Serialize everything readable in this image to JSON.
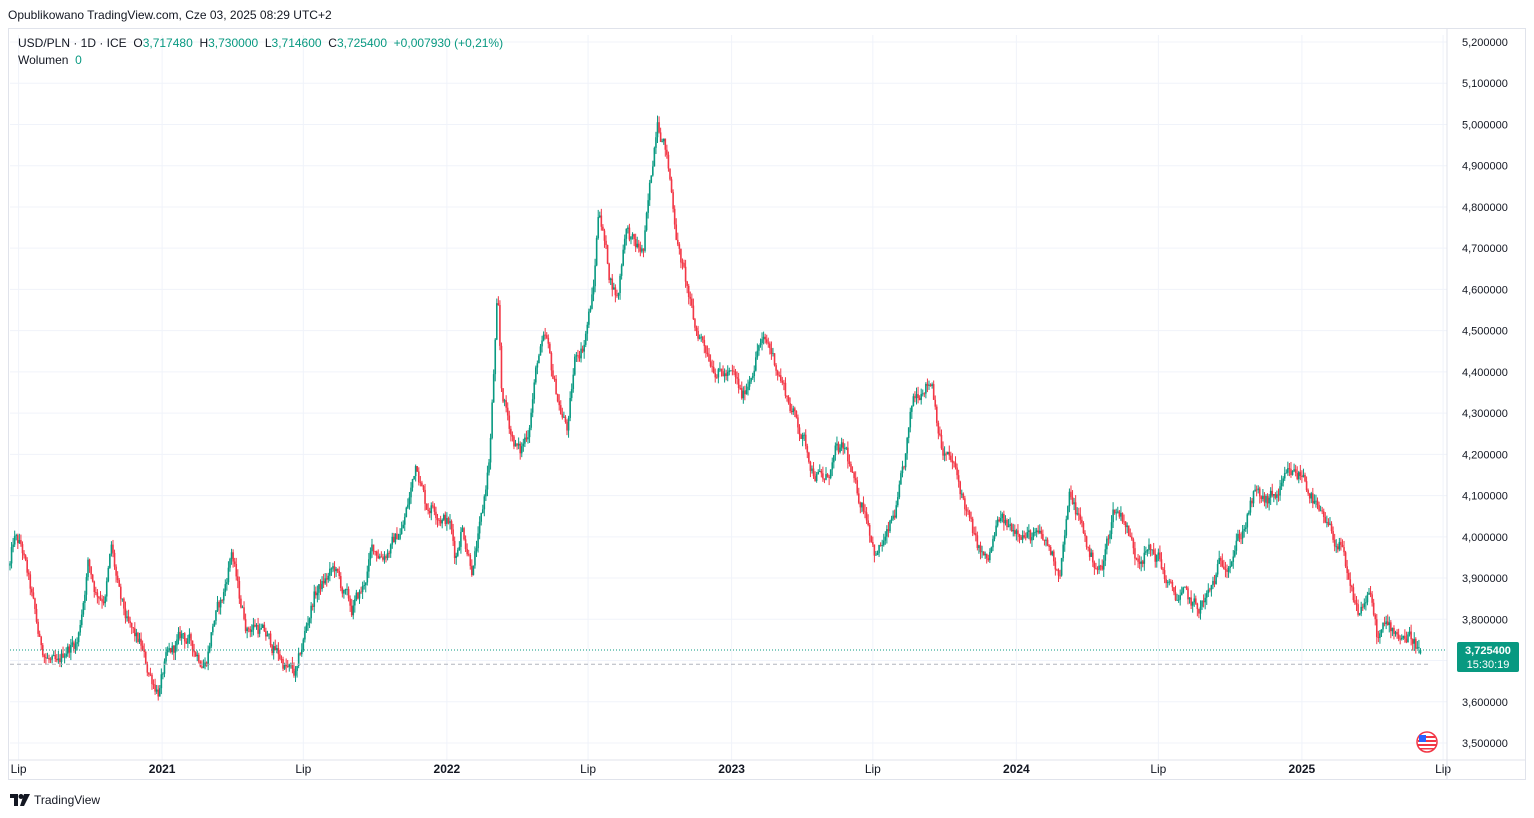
{
  "header": {
    "published": "Opublikowano TradingView.com, Cze 03, 2025 08:29 UTC+2"
  },
  "legend": {
    "symbol": "USD/PLN · 1D · ICE",
    "o_label": "O",
    "o_value": "3,717480",
    "h_label": "H",
    "h_value": "3,730000",
    "l_label": "L",
    "l_value": "3,714600",
    "c_label": "C",
    "c_value": "3,725400",
    "change": "+0,007930 (+0,21%)",
    "volume_label": "Wolumen",
    "volume_value": "0"
  },
  "price_badge": {
    "price": "3,725400",
    "countdown": "15:30:19"
  },
  "footer": {
    "brand": "TradingView"
  },
  "colors": {
    "up": "#089981",
    "down": "#f23645",
    "grid": "#f0f3fa",
    "axis_text": "#131722",
    "badge": "#089981"
  },
  "chart_data": {
    "type": "candlestick",
    "title": "",
    "ylim": [
      3.5,
      5.2
    ],
    "y_ticks": [
      "5,200000",
      "5,100000",
      "5,000000",
      "4,900000",
      "4,800000",
      "4,700000",
      "4,600000",
      "4,500000",
      "4,400000",
      "4,300000",
      "4,200000",
      "4,100000",
      "4,000000",
      "3,900000",
      "3,800000",
      "3,700000",
      "3,600000",
      "3,500000"
    ],
    "y_tick_values": [
      5.2,
      5.1,
      5.0,
      4.9,
      4.8,
      4.7,
      4.6,
      4.5,
      4.4,
      4.3,
      4.2,
      4.1,
      4.0,
      3.9,
      3.8,
      3.7,
      3.6,
      3.5
    ],
    "x_range": [
      "2020-06-20",
      "2025-07-06"
    ],
    "x_ticks": [
      {
        "label": "Lip",
        "date": "2020-07-01"
      },
      {
        "label": "2021",
        "date": "2021-01-01"
      },
      {
        "label": "Lip",
        "date": "2021-07-01"
      },
      {
        "label": "2022",
        "date": "2022-01-01"
      },
      {
        "label": "Lip",
        "date": "2022-07-01"
      },
      {
        "label": "2023",
        "date": "2023-01-01"
      },
      {
        "label": "Lip",
        "date": "2023-07-01"
      },
      {
        "label": "2024",
        "date": "2024-01-01"
      },
      {
        "label": "Lip",
        "date": "2024-07-01"
      },
      {
        "label": "2025",
        "date": "2025-01-01"
      },
      {
        "label": "Lip",
        "date": "2025-07-01"
      }
    ],
    "series_path": [
      [
        "2020-06-20",
        3.93
      ],
      [
        "2020-06-25",
        3.99
      ],
      [
        "2020-07-05",
        3.97
      ],
      [
        "2020-07-18",
        3.85
      ],
      [
        "2020-07-28",
        3.74
      ],
      [
        "2020-08-10",
        3.7
      ],
      [
        "2020-08-20",
        3.67
      ],
      [
        "2020-08-31",
        3.73
      ],
      [
        "2020-09-15",
        3.75
      ],
      [
        "2020-09-28",
        3.94
      ],
      [
        "2020-10-08",
        3.87
      ],
      [
        "2020-10-20",
        3.86
      ],
      [
        "2020-10-28",
        3.97
      ],
      [
        "2020-11-08",
        3.84
      ],
      [
        "2020-11-20",
        3.77
      ],
      [
        "2020-12-05",
        3.73
      ],
      [
        "2020-12-12",
        3.68
      ],
      [
        "2020-12-28",
        3.63
      ],
      [
        "2021-01-05",
        3.69
      ],
      [
        "2021-01-15",
        3.72
      ],
      [
        "2021-01-28",
        3.76
      ],
      [
        "2021-02-10",
        3.73
      ],
      [
        "2021-02-26",
        3.7
      ],
      [
        "2021-03-08",
        3.8
      ],
      [
        "2021-03-20",
        3.85
      ],
      [
        "2021-03-31",
        3.97
      ],
      [
        "2021-04-10",
        3.85
      ],
      [
        "2021-04-20",
        3.78
      ],
      [
        "2021-05-01",
        3.79
      ],
      [
        "2021-05-20",
        3.74
      ],
      [
        "2021-06-01",
        3.71
      ],
      [
        "2021-06-10",
        3.68
      ],
      [
        "2021-06-22",
        3.66
      ],
      [
        "2021-07-05",
        3.78
      ],
      [
        "2021-07-15",
        3.86
      ],
      [
        "2021-07-28",
        3.89
      ],
      [
        "2021-08-10",
        3.92
      ],
      [
        "2021-08-20",
        3.87
      ],
      [
        "2021-09-01",
        3.82
      ],
      [
        "2021-09-15",
        3.87
      ],
      [
        "2021-09-28",
        3.97
      ],
      [
        "2021-10-10",
        3.96
      ],
      [
        "2021-10-22",
        3.98
      ],
      [
        "2021-11-05",
        4.02
      ],
      [
        "2021-11-15",
        4.1
      ],
      [
        "2021-11-23",
        4.19
      ],
      [
        "2021-12-05",
        4.08
      ],
      [
        "2021-12-15",
        4.08
      ],
      [
        "2021-12-28",
        4.05
      ],
      [
        "2022-01-05",
        4.03
      ],
      [
        "2022-01-12",
        3.95
      ],
      [
        "2022-01-20",
        4.03
      ],
      [
        "2022-02-03",
        3.93
      ],
      [
        "2022-02-15",
        4.04
      ],
      [
        "2022-02-25",
        4.2
      ],
      [
        "2022-03-07",
        4.58
      ],
      [
        "2022-03-12",
        4.35
      ],
      [
        "2022-03-25",
        4.25
      ],
      [
        "2022-04-05",
        4.2
      ],
      [
        "2022-04-15",
        4.26
      ],
      [
        "2022-04-28",
        4.44
      ],
      [
        "2022-05-08",
        4.47
      ],
      [
        "2022-05-15",
        4.4
      ],
      [
        "2022-05-28",
        4.3
      ],
      [
        "2022-06-05",
        4.26
      ],
      [
        "2022-06-15",
        4.44
      ],
      [
        "2022-06-25",
        4.47
      ],
      [
        "2022-07-08",
        4.6
      ],
      [
        "2022-07-15",
        4.81
      ],
      [
        "2022-07-28",
        4.64
      ],
      [
        "2022-08-08",
        4.58
      ],
      [
        "2022-08-18",
        4.76
      ],
      [
        "2022-08-30",
        4.7
      ],
      [
        "2022-09-10",
        4.69
      ],
      [
        "2022-09-20",
        4.87
      ],
      [
        "2022-09-28",
        5.03
      ],
      [
        "2022-10-08",
        4.95
      ],
      [
        "2022-10-15",
        4.85
      ],
      [
        "2022-10-25",
        4.7
      ],
      [
        "2022-11-05",
        4.6
      ],
      [
        "2022-11-15",
        4.5
      ],
      [
        "2022-11-25",
        4.48
      ],
      [
        "2022-12-05",
        4.44
      ],
      [
        "2022-12-18",
        4.4
      ],
      [
        "2023-01-05",
        4.38
      ],
      [
        "2023-01-15",
        4.33
      ],
      [
        "2023-02-05",
        4.47
      ],
      [
        "2023-02-18",
        4.46
      ],
      [
        "2023-03-03",
        4.4
      ],
      [
        "2023-03-15",
        4.33
      ],
      [
        "2023-04-01",
        4.25
      ],
      [
        "2023-04-15",
        4.17
      ],
      [
        "2023-05-01",
        4.13
      ],
      [
        "2023-05-15",
        4.2
      ],
      [
        "2023-05-28",
        4.2
      ],
      [
        "2023-06-10",
        4.1
      ],
      [
        "2023-06-22",
        4.07
      ],
      [
        "2023-07-05",
        3.96
      ],
      [
        "2023-07-20",
        4.0
      ],
      [
        "2023-08-01",
        4.07
      ],
      [
        "2023-08-10",
        4.16
      ],
      [
        "2023-08-22",
        4.33
      ],
      [
        "2023-09-05",
        4.38
      ],
      [
        "2023-09-15",
        4.38
      ],
      [
        "2023-09-28",
        4.21
      ],
      [
        "2023-10-12",
        4.17
      ],
      [
        "2023-10-28",
        4.07
      ],
      [
        "2023-11-10",
        3.98
      ],
      [
        "2023-11-25",
        3.93
      ],
      [
        "2023-12-10",
        4.04
      ],
      [
        "2023-12-20",
        4.02
      ],
      [
        "2024-01-05",
        4.03
      ],
      [
        "2024-01-18",
        4.0
      ],
      [
        "2024-02-01",
        3.99
      ],
      [
        "2024-02-12",
        3.97
      ],
      [
        "2024-02-25",
        3.92
      ],
      [
        "2024-03-10",
        4.1
      ],
      [
        "2024-03-22",
        4.04
      ],
      [
        "2024-04-05",
        3.95
      ],
      [
        "2024-04-20",
        3.92
      ],
      [
        "2024-05-05",
        4.07
      ],
      [
        "2024-05-18",
        4.05
      ],
      [
        "2024-06-01",
        3.96
      ],
      [
        "2024-06-15",
        3.97
      ],
      [
        "2024-07-01",
        3.95
      ],
      [
        "2024-07-18",
        3.86
      ],
      [
        "2024-08-05",
        3.85
      ],
      [
        "2024-08-20",
        3.82
      ],
      [
        "2024-09-05",
        3.86
      ],
      [
        "2024-09-18",
        3.93
      ],
      [
        "2024-10-01",
        3.96
      ],
      [
        "2024-10-18",
        4.02
      ],
      [
        "2024-11-01",
        4.1
      ],
      [
        "2024-11-15",
        4.08
      ],
      [
        "2024-12-01",
        4.1
      ],
      [
        "2024-12-15",
        4.14
      ],
      [
        "2025-01-03",
        4.15
      ],
      [
        "2025-01-14",
        4.1
      ],
      [
        "2025-01-25",
        4.04
      ],
      [
        "2025-02-08",
        4.0
      ],
      [
        "2025-02-20",
        3.98
      ],
      [
        "2025-03-03",
        3.86
      ],
      [
        "2025-03-15",
        3.81
      ],
      [
        "2025-03-28",
        3.87
      ],
      [
        "2025-04-08",
        3.75
      ],
      [
        "2025-04-20",
        3.78
      ],
      [
        "2025-05-05",
        3.77
      ],
      [
        "2025-05-20",
        3.76
      ],
      [
        "2025-06-03",
        3.7254
      ]
    ],
    "last_price": 3.7254,
    "reference_line": 3.691
  }
}
